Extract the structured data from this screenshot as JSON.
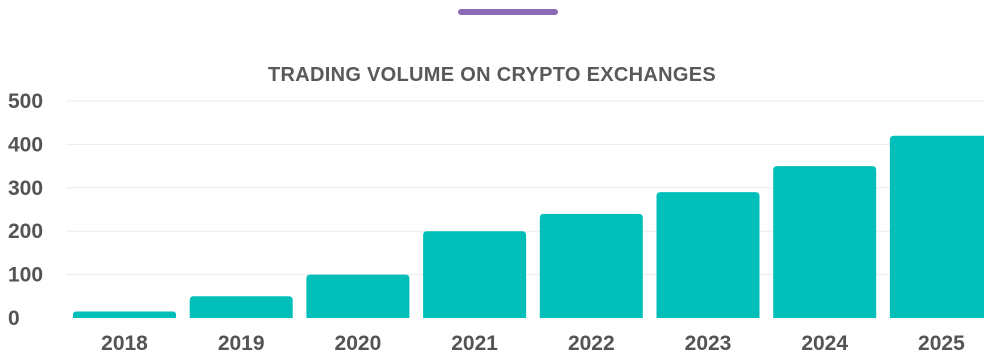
{
  "chart_data": {
    "type": "bar",
    "title": "TRADING VOLUME ON CRYPTO EXCHANGES",
    "categories": [
      "2018",
      "2019",
      "2020",
      "2021",
      "2022",
      "2023",
      "2024",
      "2025"
    ],
    "values": [
      15,
      50,
      100,
      200,
      240,
      290,
      350,
      420
    ],
    "ylim": [
      0,
      500
    ],
    "yticks": [
      "0",
      "100",
      "200",
      "300",
      "400",
      "500"
    ],
    "xlabel": "",
    "ylabel": "",
    "grid": true,
    "legend": "none"
  },
  "colors": {
    "bar": "#00BFB8",
    "accent": "#8C6BB5",
    "grid": "#EBEBEB",
    "text": "#545454"
  }
}
